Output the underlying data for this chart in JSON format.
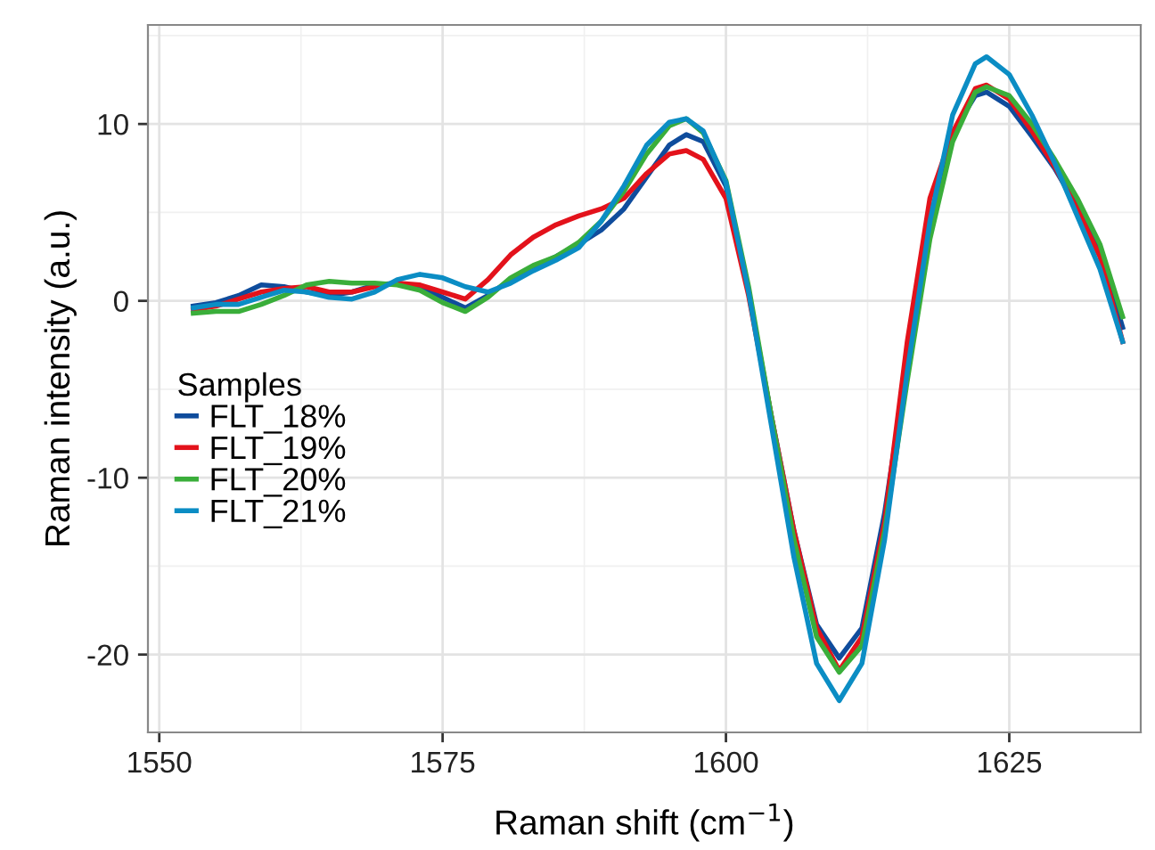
{
  "chart_data": {
    "type": "line",
    "xlabel": "Raman shift (cm$^{−1}$)",
    "ylabel": "Raman intensity (a.u.)",
    "legend_title": "Samples",
    "legend": "left",
    "grid": true,
    "line_style": "solid",
    "marker": "none",
    "xlim": [
      1549,
      1636.6
    ],
    "ylim": [
      -24.4,
      15.6
    ],
    "xticks": [
      1550,
      1575,
      1600,
      1625
    ],
    "yticks": [
      -20,
      -10,
      0,
      10
    ],
    "x": [
      1553,
      1555,
      1557,
      1559,
      1561,
      1563,
      1565,
      1567,
      1569,
      1571,
      1573,
      1575,
      1577,
      1579,
      1581,
      1583,
      1585,
      1587,
      1589,
      1591,
      1593,
      1595,
      1596.5,
      1598,
      1600,
      1602,
      1604,
      1606,
      1608,
      1610,
      1612,
      1614,
      1616,
      1618,
      1620,
      1622,
      1623,
      1625,
      1627,
      1629,
      1631,
      1633,
      1635
    ],
    "series": [
      {
        "name": "FLT_18%",
        "color": "#0f4c9c",
        "values": [
          -0.3,
          -0.1,
          0.3,
          0.9,
          0.8,
          0.5,
          0.3,
          0.5,
          0.9,
          1.0,
          0.8,
          0.2,
          -0.4,
          0.3,
          1.2,
          1.9,
          2.5,
          3.2,
          4.0,
          5.2,
          7.0,
          8.8,
          9.4,
          9.0,
          6.5,
          0.5,
          -6.5,
          -13,
          -18.3,
          -20.2,
          -18.5,
          -12,
          -3.5,
          4.5,
          9.5,
          11.6,
          11.8,
          11,
          9.3,
          7.5,
          5.3,
          2.8,
          -1.5
        ]
      },
      {
        "name": "FLT_19%",
        "color": "#e3121b",
        "values": [
          -0.5,
          -0.3,
          0.1,
          0.5,
          0.7,
          0.8,
          0.5,
          0.5,
          0.8,
          1.0,
          0.9,
          0.5,
          0.1,
          1.2,
          2.6,
          3.6,
          4.3,
          4.8,
          5.2,
          5.8,
          7.2,
          8.3,
          8.5,
          8.0,
          5.8,
          0.3,
          -6.5,
          -13,
          -18.5,
          -20.9,
          -19,
          -12.5,
          -2.3,
          5.8,
          9.5,
          12.0,
          12.2,
          11.4,
          9.6,
          7.6,
          5.2,
          2.5,
          -2.3
        ]
      },
      {
        "name": "FLT_20%",
        "color": "#3aae3a",
        "values": [
          -0.7,
          -0.6,
          -0.6,
          -0.2,
          0.3,
          0.9,
          1.1,
          1.0,
          1.0,
          0.9,
          0.6,
          -0.1,
          -0.6,
          0.2,
          1.3,
          2.0,
          2.5,
          3.3,
          4.5,
          6.2,
          8.3,
          9.9,
          10.3,
          9.5,
          6.8,
          0.8,
          -6.5,
          -13.5,
          -19,
          -21.0,
          -19.5,
          -13,
          -4.5,
          3.5,
          9.0,
          11.8,
          12.1,
          11.6,
          10.0,
          8.0,
          5.8,
          3.2,
          -0.9
        ]
      },
      {
        "name": "FLT_21%",
        "color": "#0b8dc4",
        "values": [
          -0.4,
          -0.2,
          -0.2,
          0.2,
          0.6,
          0.5,
          0.2,
          0.1,
          0.5,
          1.2,
          1.5,
          1.3,
          0.8,
          0.5,
          1.0,
          1.7,
          2.3,
          3.0,
          4.5,
          6.5,
          8.8,
          10.1,
          10.3,
          9.6,
          6.7,
          0.5,
          -7,
          -14.5,
          -20.5,
          -22.6,
          -20.5,
          -13.5,
          -4,
          4.5,
          10.5,
          13.4,
          13.8,
          12.8,
          10.5,
          7.8,
          4.8,
          1.8,
          -2.3
        ]
      }
    ]
  }
}
